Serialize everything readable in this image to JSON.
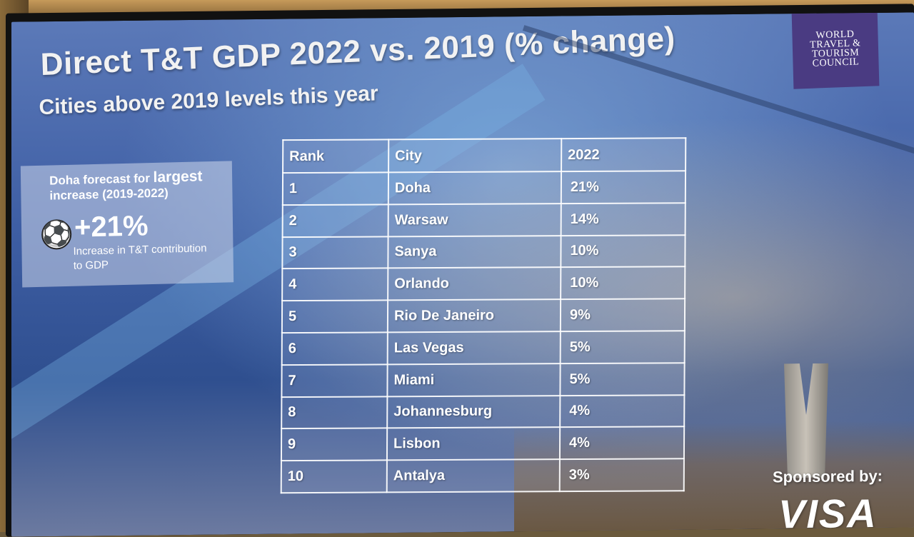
{
  "slide": {
    "title": "Direct T&T GDP 2022 vs. 2019 (% change)",
    "subtitle": "Cities above 2019 levels this year"
  },
  "logo": {
    "line1": "WORLD",
    "line2": "TRAVEL &",
    "line3": "TOURISM",
    "line4": "COUNCIL"
  },
  "callout": {
    "head_prefix": "Doha forecast for",
    "head_emph": "largest",
    "head_suffix": "increase (2019-2022)",
    "icon": "soccer-ball-icon",
    "value": "+21%",
    "desc": "Increase in T&T contribution to GDP"
  },
  "table": {
    "headers": [
      "Rank",
      "City",
      "2022"
    ],
    "rows": [
      {
        "rank": "1",
        "city": "Doha",
        "value": "21%"
      },
      {
        "rank": "2",
        "city": "Warsaw",
        "value": "14%"
      },
      {
        "rank": "3",
        "city": "Sanya",
        "value": "10%"
      },
      {
        "rank": "4",
        "city": "Orlando",
        "value": "10%"
      },
      {
        "rank": "5",
        "city": "Rio De Janeiro",
        "value": "9%"
      },
      {
        "rank": "6",
        "city": "Las Vegas",
        "value": "5%"
      },
      {
        "rank": "7",
        "city": "Miami",
        "value": "5%"
      },
      {
        "rank": "8",
        "city": "Johannesburg",
        "value": "4%"
      },
      {
        "rank": "9",
        "city": "Lisbon",
        "value": "4%"
      },
      {
        "rank": "10",
        "city": "Antalya",
        "value": "3%"
      }
    ]
  },
  "sponsor": {
    "label": "Sponsored by:",
    "brand": "VISA"
  }
}
